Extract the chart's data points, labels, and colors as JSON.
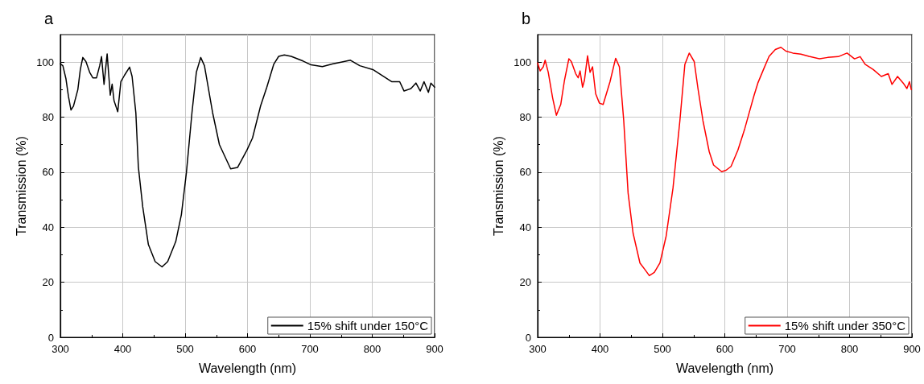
{
  "chart_data": [
    {
      "type": "line",
      "title": "a",
      "xlabel": "Wavelength (nm)",
      "ylabel": "Transmission (%)",
      "xlim": [
        300,
        900
      ],
      "xticks": [
        300,
        400,
        500,
        600,
        700,
        800,
        900
      ],
      "ylim": [
        0,
        110
      ],
      "yticks": [
        0,
        20,
        40,
        60,
        80,
        100
      ],
      "grid": true,
      "legend": "bottom right",
      "marker": "none",
      "line_style": "solid",
      "series": [
        {
          "name": "15% shift under 150°C",
          "color": "#000000",
          "x": [
            300,
            304,
            309,
            313,
            317,
            321,
            328,
            332,
            336,
            341,
            347,
            352,
            358,
            363,
            366,
            370,
            375,
            380,
            383,
            386,
            392,
            397,
            403,
            411,
            415,
            421,
            425,
            432,
            441,
            452,
            463,
            472,
            485,
            494,
            502,
            511,
            518,
            525,
            531,
            544,
            555,
            573,
            584,
            599,
            608,
            621,
            631,
            642,
            650,
            659,
            670,
            689,
            702,
            720,
            737,
            750,
            765,
            780,
            801,
            818,
            831,
            844,
            851,
            862,
            870,
            877,
            883,
            890,
            894,
            900
          ],
          "values": [
            99.4,
            98.7,
            93.9,
            87.5,
            82.6,
            84,
            90,
            97.3,
            101.7,
            100.2,
            96.3,
            94.3,
            94.3,
            98.7,
            102,
            91.9,
            103,
            88,
            92,
            86,
            82,
            92.9,
            95.3,
            98.2,
            94.8,
            81.6,
            62,
            47.5,
            33.8,
            27.5,
            25.6,
            27.5,
            34.8,
            44.6,
            59.7,
            81.7,
            96.3,
            101.7,
            98.7,
            81.7,
            70,
            61.2,
            61.7,
            68,
            72.4,
            84.1,
            90.9,
            99.2,
            102.1,
            102.6,
            102.1,
            100.4,
            99,
            98.4,
            99.4,
            100,
            100.7,
            98.7,
            97.3,
            94.8,
            92.9,
            92.9,
            89.5,
            90.4,
            92.4,
            89.5,
            92.9,
            89,
            92.4,
            90.9
          ]
        }
      ]
    },
    {
      "type": "line",
      "title": "b",
      "xlabel": "Wavelength (nm)",
      "ylabel": "Transmission (%)",
      "xlim": [
        300,
        900
      ],
      "xticks": [
        300,
        400,
        500,
        600,
        700,
        800,
        900
      ],
      "ylim": [
        0,
        110
      ],
      "yticks": [
        0,
        20,
        40,
        60,
        80,
        100
      ],
      "grid": true,
      "legend": "bottom right",
      "marker": "none",
      "line_style": "solid",
      "series": [
        {
          "name": "15% shift under 350°C",
          "color": "#ff0000",
          "x": [
            300,
            304,
            309,
            312,
            317,
            324,
            330,
            337,
            343,
            350,
            354,
            361,
            365,
            368,
            372,
            375,
            380,
            384,
            388,
            393,
            399,
            405,
            416,
            425,
            431,
            438,
            445,
            453,
            464,
            472,
            479,
            487,
            496,
            506,
            517,
            528,
            536,
            543,
            551,
            557,
            565,
            575,
            582,
            595,
            602,
            610,
            621,
            632,
            638,
            647,
            653,
            662,
            671,
            681,
            690,
            698,
            709,
            722,
            735,
            752,
            765,
            782,
            796,
            808,
            817,
            825,
            838,
            851,
            862,
            868,
            877,
            886,
            892,
            896,
            899
          ],
          "values": [
            99.7,
            96.8,
            98.3,
            100.7,
            96.3,
            87,
            80.7,
            84.6,
            93.4,
            101.2,
            100.2,
            95.8,
            94.3,
            96.8,
            90.9,
            93.4,
            102.3,
            96.3,
            98.3,
            88.5,
            85.1,
            84.6,
            92.9,
            101.4,
            98.3,
            78.7,
            52.4,
            37.8,
            27,
            24.6,
            22.4,
            23.6,
            27,
            36.8,
            54.3,
            78.7,
            99.2,
            103.3,
            100.2,
            90.4,
            78.7,
            67.5,
            62.6,
            60.2,
            60.7,
            62.1,
            68,
            75.8,
            80.7,
            88,
            92.4,
            97.3,
            102.1,
            104.6,
            105.4,
            104,
            103.3,
            102.9,
            102.1,
            101.2,
            101.7,
            102,
            103.3,
            101.2,
            102,
            99.2,
            97.3,
            94.8,
            95.8,
            91.9,
            94.8,
            92.4,
            90.4,
            92.9,
            90
          ]
        }
      ]
    }
  ]
}
